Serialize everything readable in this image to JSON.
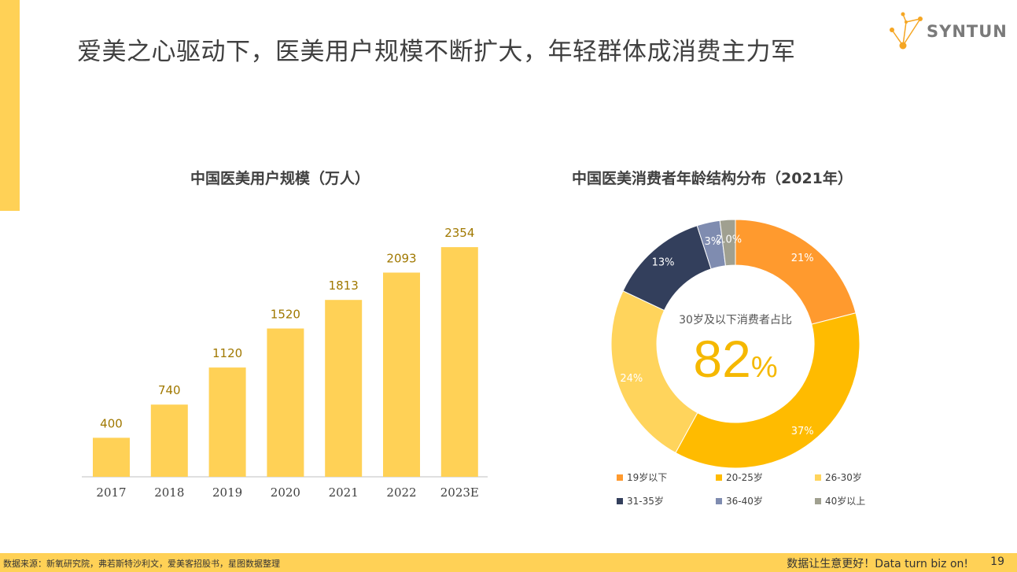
{
  "title": "爱美之心驱动下，医美用户规模不断扩大，年轻群体成消费主力军",
  "logo": {
    "text": "SYNTUN",
    "icon": "network-star-icon",
    "color": "#F5A623"
  },
  "colors": {
    "accent": "#FFD156",
    "bar": "#FFD156",
    "bar_label": "#A07800",
    "center_value": "#F5B800"
  },
  "chart_data": [
    {
      "type": "bar",
      "title": "中国医美用户规模（万人）",
      "categories": [
        "2017",
        "2018",
        "2019",
        "2020",
        "2021",
        "2022",
        "2023E"
      ],
      "values": [
        400,
        740,
        1120,
        1520,
        1813,
        2093,
        2354
      ],
      "data_labels": [
        "400",
        "740",
        "1120",
        "1520",
        "1813",
        "2093",
        "2354"
      ],
      "xlabel": "",
      "ylabel": "",
      "ylim": [
        0,
        2500
      ],
      "grid": false,
      "legend": "none"
    },
    {
      "type": "pie",
      "donut": true,
      "title": "中国医美消费者年龄结构分布（2021年）",
      "center_caption": "30岁及以下消费者占比",
      "center_value": "82",
      "center_unit": "%",
      "legend_position": "bottom",
      "slices": [
        {
          "label": "19岁以下",
          "value": 21,
          "display": "21%",
          "color": "#FF9A2E"
        },
        {
          "label": "20-25岁",
          "value": 37,
          "display": "37%",
          "color": "#FFBB00"
        },
        {
          "label": "26-30岁",
          "value": 24,
          "display": "24%",
          "color": "#FFD45C"
        },
        {
          "label": "31-35岁",
          "value": 13,
          "display": "13%",
          "color": "#333F5C"
        },
        {
          "label": "36-40岁",
          "value": 3,
          "display": "3%",
          "color": "#7F8CB0"
        },
        {
          "label": "40岁以上",
          "value": 2,
          "display": "2.0%",
          "color": "#A0A090"
        }
      ]
    }
  ],
  "footer": {
    "source": "数据来源：新氧研究院，弗若斯特沙利文，爱美客招股书，星图数据整理",
    "slogan": "数据让生意更好！Data turn biz on!",
    "page": "19"
  }
}
